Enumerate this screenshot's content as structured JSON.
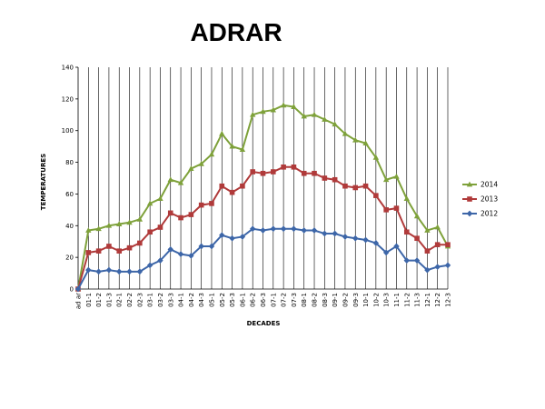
{
  "chart_data": {
    "type": "line",
    "title": "ADRAR",
    "xlabel": "DECADES",
    "ylabel": "TEMPERATURES",
    "ylim": [
      0,
      140
    ],
    "yticks": [
      0,
      20,
      40,
      60,
      80,
      100,
      120,
      140
    ],
    "grid": "vertical",
    "legend_position": "right",
    "categories": [
      "ad ar",
      "01-1",
      "01-2",
      "01-3",
      "02-1",
      "02-2",
      "02-3",
      "03-1",
      "03-2",
      "03-3",
      "04-1",
      "04-2",
      "04-3",
      "05-1",
      "05-2",
      "05-3",
      "06-1",
      "06-2",
      "06-3",
      "07-1",
      "07-2",
      "07-3",
      "08-1",
      "08-2",
      "08-3",
      "09-1",
      "09-2",
      "09-3",
      "10-1",
      "10-2",
      "10-3",
      "11-1",
      "11-2",
      "11-3",
      "12-1",
      "12-2",
      "12-3"
    ],
    "series": [
      {
        "name": "2014",
        "color": "#7ea13a",
        "marker": "triangle",
        "values": [
          0,
          37,
          38,
          40,
          41,
          42,
          44,
          54,
          57,
          69,
          67,
          76,
          79,
          85,
          98,
          90,
          88,
          110,
          112,
          113,
          116,
          115,
          109,
          110,
          107,
          104,
          98,
          94,
          92,
          83,
          69,
          71,
          57,
          46,
          37,
          39,
          27
        ]
      },
      {
        "name": "2013",
        "color": "#b03a3a",
        "marker": "square",
        "values": [
          0,
          23,
          24,
          27,
          24,
          26,
          29,
          36,
          39,
          48,
          45,
          47,
          53,
          54,
          65,
          61,
          65,
          74,
          73,
          74,
          77,
          77,
          73,
          73,
          70,
          69,
          65,
          64,
          65,
          59,
          50,
          51,
          36,
          32,
          24,
          28,
          28
        ]
      },
      {
        "name": "2012",
        "color": "#3d66a8",
        "marker": "diamond",
        "values": [
          0,
          12,
          11,
          12,
          11,
          11,
          11,
          15,
          18,
          25,
          22,
          21,
          27,
          27,
          34,
          32,
          33,
          38,
          37,
          38,
          38,
          38,
          37,
          37,
          35,
          35,
          33,
          32,
          31,
          29,
          23,
          27,
          18,
          18,
          12,
          14,
          15
        ]
      }
    ]
  }
}
